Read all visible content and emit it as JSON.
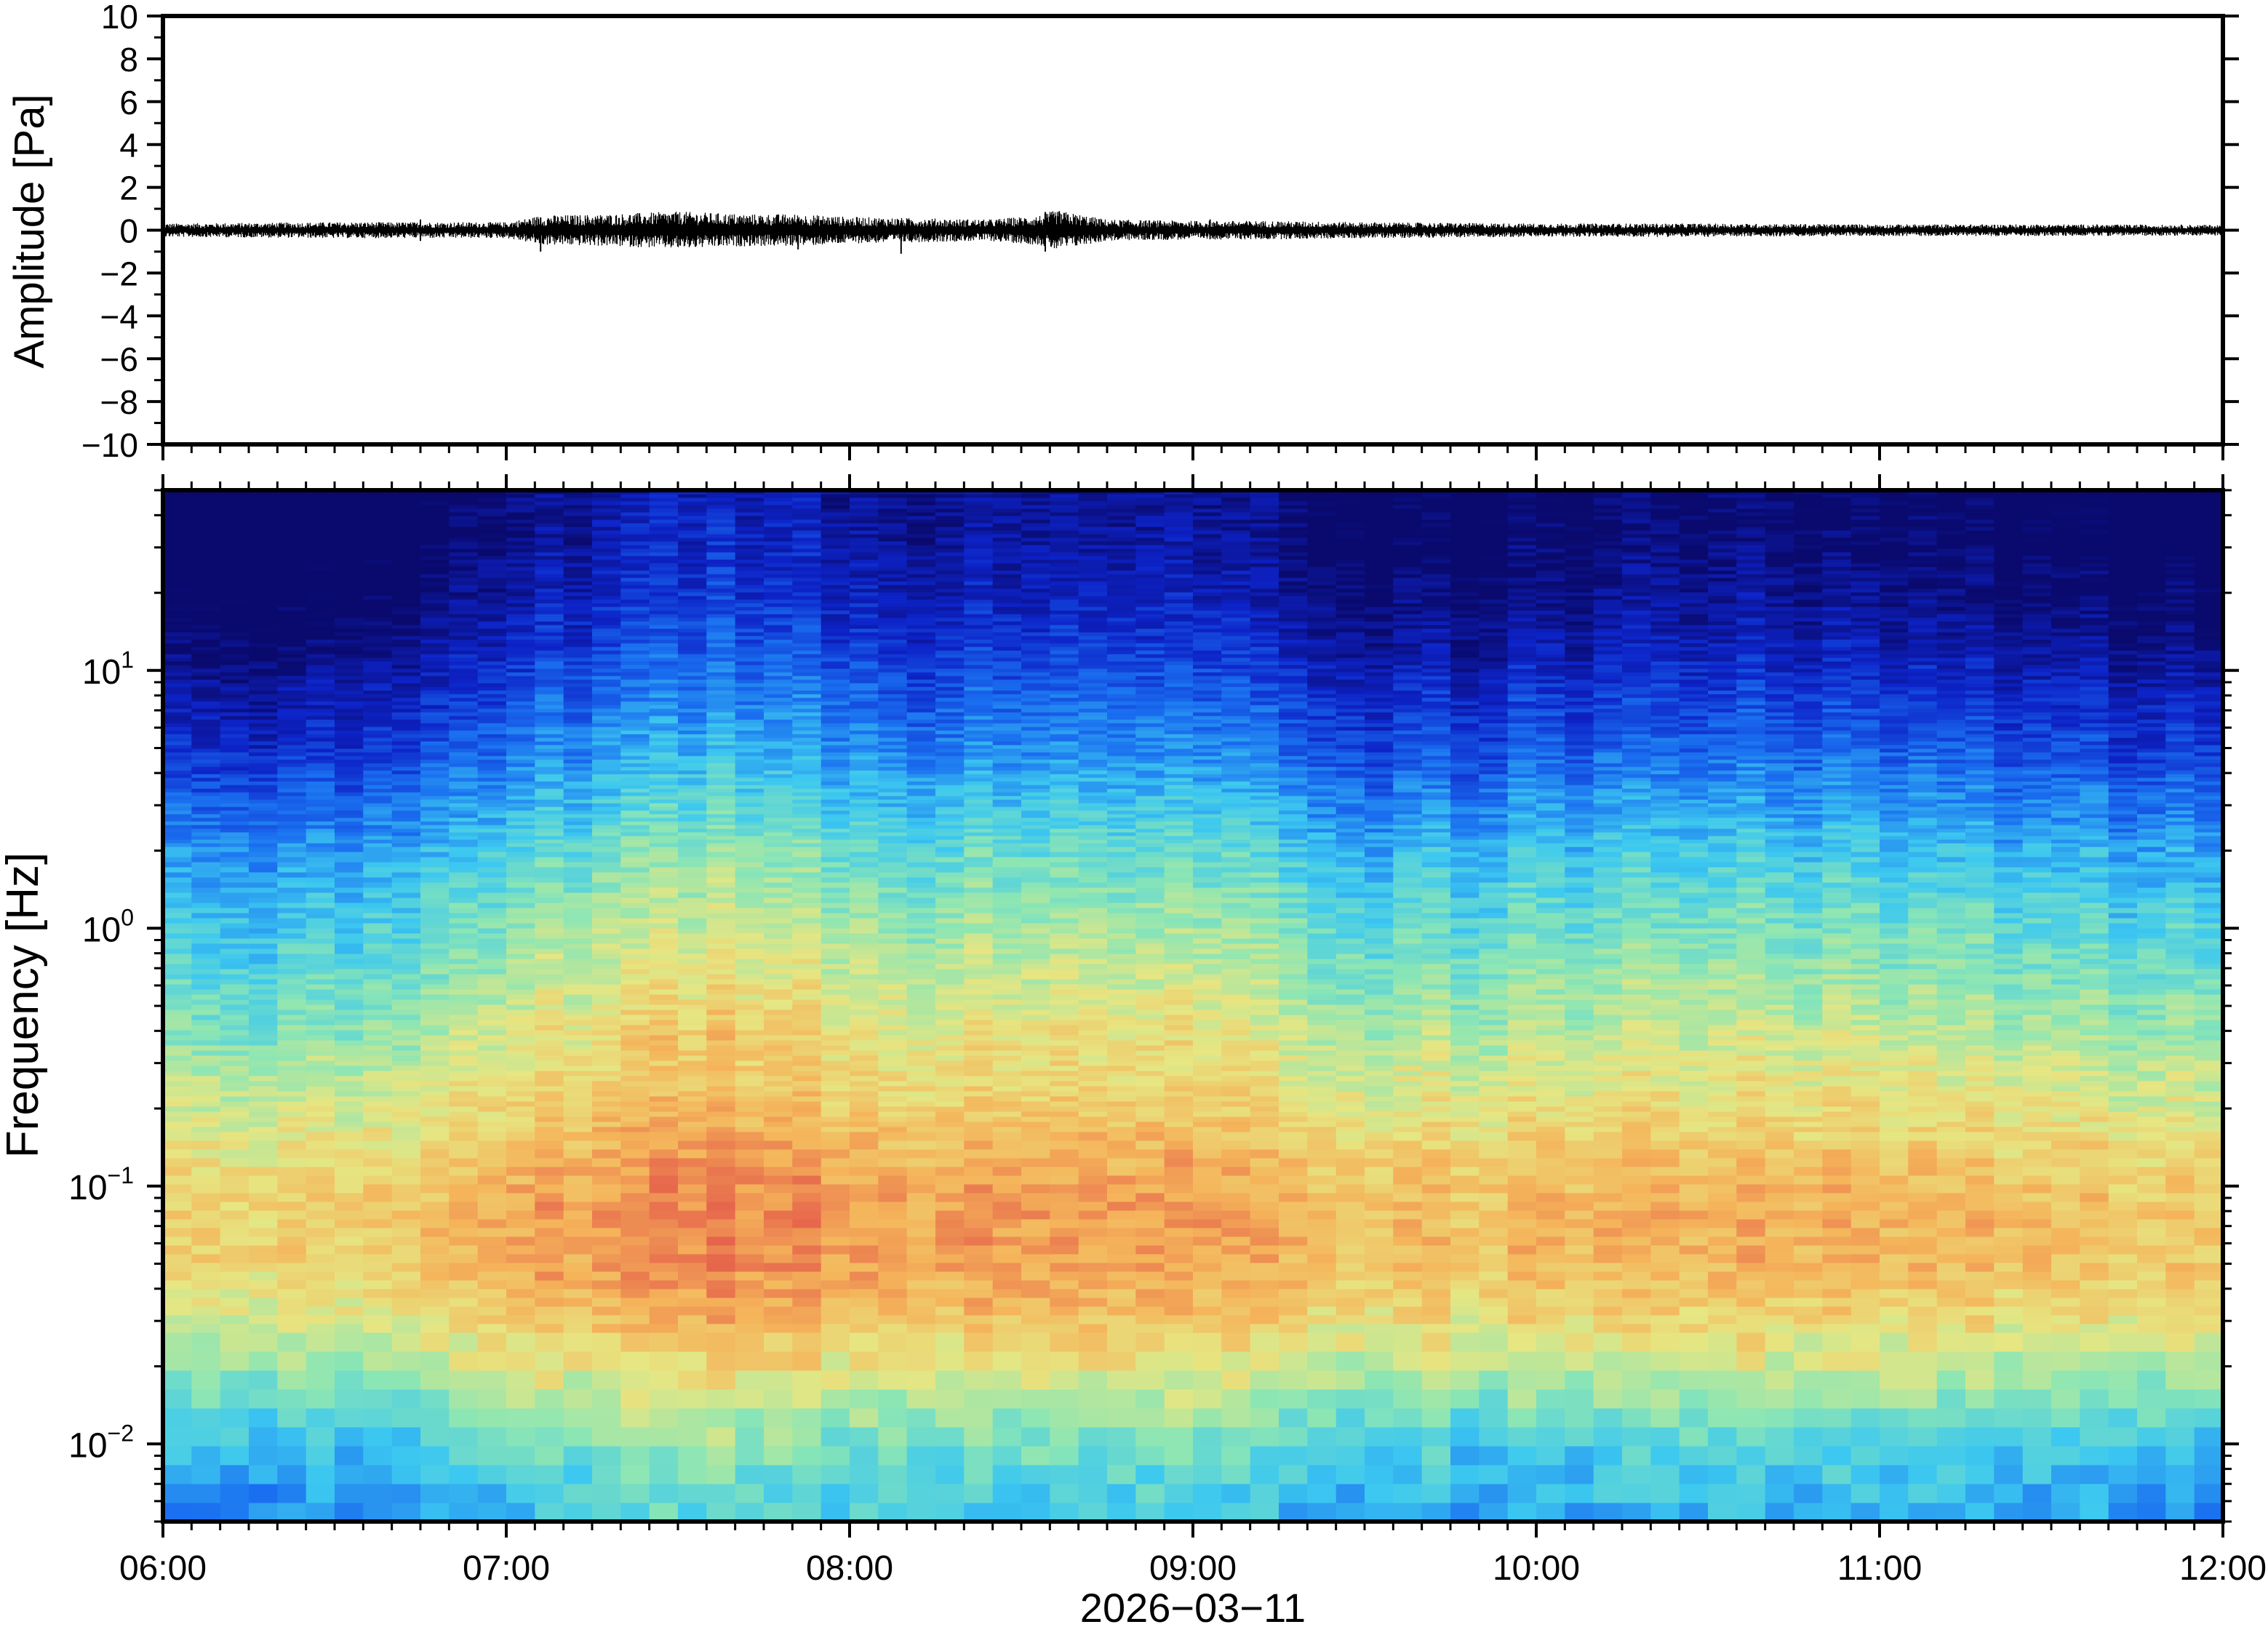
{
  "chart_data": [
    {
      "type": "line",
      "panel": "waveform",
      "ylabel": "Amplitude [Pa]",
      "ylim": [
        -10,
        10
      ],
      "y_ticks": [
        -10,
        -8,
        -6,
        -4,
        -2,
        0,
        2,
        4,
        6,
        8,
        10
      ],
      "y_tick_labels": [
        "−10",
        "−8",
        "−6",
        "−4",
        "−2",
        "0",
        "2",
        "4",
        "6",
        "8",
        "10"
      ],
      "x_ticks": [
        "06:00",
        "07:00",
        "08:00",
        "09:00",
        "10:00",
        "11:00",
        "12:00"
      ],
      "xlim_hours": [
        6,
        12
      ],
      "line_color": "#000000",
      "envelope": {
        "hours": [
          6.0,
          6.5,
          7.0,
          7.1,
          7.3,
          7.5,
          7.7,
          7.85,
          8.0,
          8.2,
          8.4,
          8.55,
          8.6,
          8.75,
          9.0,
          9.2,
          9.5,
          10.0,
          10.5,
          11.0,
          11.5,
          12.0
        ],
        "amplitude_pa": [
          0.25,
          0.3,
          0.3,
          0.55,
          0.6,
          0.7,
          0.6,
          0.6,
          0.5,
          0.45,
          0.4,
          0.55,
          0.75,
          0.4,
          0.35,
          0.35,
          0.3,
          0.25,
          0.25,
          0.22,
          0.22,
          0.2
        ]
      },
      "spikes": [
        {
          "hour": 7.1,
          "min": -1.0,
          "max": 0.6
        },
        {
          "hour": 7.5,
          "min": -0.7,
          "max": 0.75
        },
        {
          "hour": 7.85,
          "min": -0.9,
          "max": 0.55
        },
        {
          "hour": 8.15,
          "min": -1.1,
          "max": 0.45
        },
        {
          "hour": 8.57,
          "min": -1.0,
          "max": 0.85
        },
        {
          "hour": 6.75,
          "min": -0.5,
          "max": 0.5
        },
        {
          "hour": 9.05,
          "min": -0.4,
          "max": 0.5
        }
      ]
    },
    {
      "type": "heatmap",
      "panel": "spectrogram",
      "ylabel": "Frequency [Hz]",
      "xlabel": "2026−03−11",
      "y_scale": "log",
      "ylim_hz": [
        0.005,
        50
      ],
      "y_ticks": [
        {
          "base": "10",
          "exp": "−2",
          "value": 0.01
        },
        {
          "base": "10",
          "exp": "−1",
          "value": 0.1
        },
        {
          "base": "10",
          "exp": "0",
          "value": 1
        },
        {
          "base": "10",
          "exp": "1",
          "value": 10
        }
      ],
      "x_ticks": [
        "06:00",
        "07:00",
        "08:00",
        "09:00",
        "10:00",
        "11:00",
        "12:00"
      ],
      "xlim_hours": [
        6,
        12
      ],
      "colormap": [
        "#0a0a6e",
        "#0d23c8",
        "#1a6ff0",
        "#3cc8f0",
        "#8ce6b4",
        "#e6e682",
        "#f5b45a",
        "#e6644b"
      ],
      "power_profile": {
        "log10_freq": [
          -2.3,
          -2.1,
          -1.9,
          -1.7,
          -1.5,
          -1.3,
          -1.1,
          -0.9,
          -0.7,
          -0.5,
          -0.3,
          -0.1,
          0.1,
          0.3,
          0.5,
          0.7,
          0.9,
          1.1,
          1.3,
          1.5,
          1.7
        ],
        "level": [
          0.4,
          0.45,
          0.55,
          0.68,
          0.78,
          0.85,
          0.86,
          0.82,
          0.75,
          0.7,
          0.64,
          0.58,
          0.52,
          0.45,
          0.36,
          0.27,
          0.2,
          0.12,
          0.06,
          0.02,
          0.0
        ]
      },
      "activity": {
        "hours": [
          6.0,
          6.5,
          7.0,
          7.3,
          7.6,
          7.9,
          8.2,
          8.5,
          8.6,
          8.8,
          9.1,
          9.3,
          9.6,
          10.0,
          10.4,
          10.8,
          11.2,
          11.6,
          12.0
        ],
        "boost": [
          -0.12,
          -0.1,
          0.0,
          0.1,
          0.12,
          0.1,
          0.06,
          0.04,
          0.1,
          0.05,
          0.08,
          -0.05,
          -0.06,
          -0.02,
          0.0,
          -0.02,
          -0.04,
          -0.06,
          -0.1
        ]
      }
    }
  ]
}
